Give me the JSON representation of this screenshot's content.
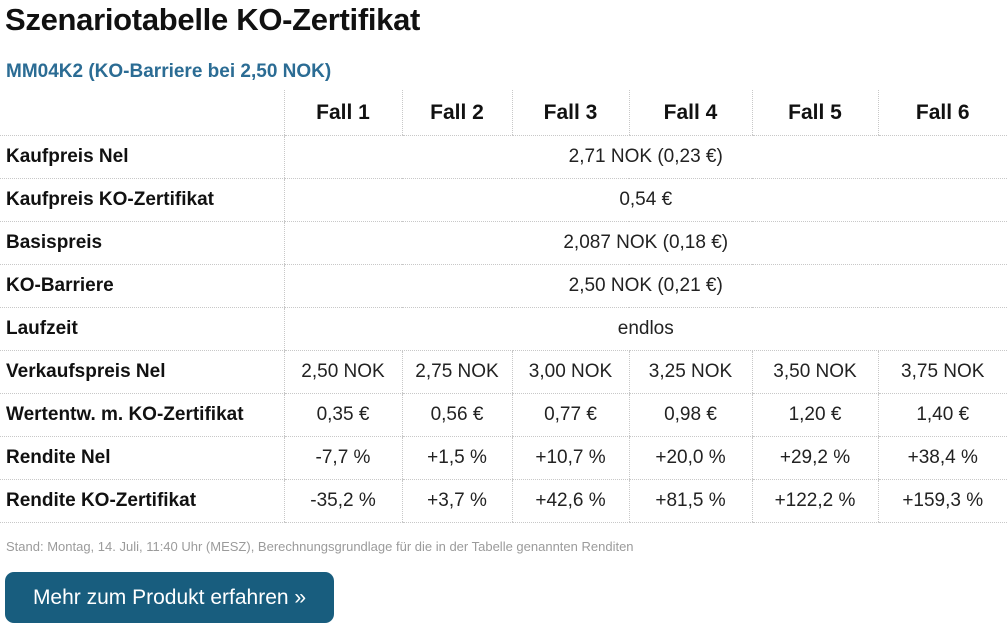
{
  "page": {
    "title": "Szenariotabelle KO-Zertifikat",
    "subtitle": "MM04K2 (KO-Barriere bei 2,50 NOK)"
  },
  "table": {
    "columns": [
      "Fall 1",
      "Fall 2",
      "Fall 3",
      "Fall 4",
      "Fall 5",
      "Fall 6"
    ],
    "rows": [
      {
        "label": "Kaufpreis Nel",
        "merged": "2,71 NOK (0,23 €)"
      },
      {
        "label": "Kaufpreis KO-Zertifikat",
        "merged": "0,54 €"
      },
      {
        "label": "Basispreis",
        "merged": "2,087 NOK (0,18 €)"
      },
      {
        "label": "KO-Barriere",
        "merged": "2,50 NOK (0,21 €)"
      },
      {
        "label": "Laufzeit",
        "merged": "endlos"
      },
      {
        "label": "Verkaufspreis Nel",
        "cells": [
          "2,50 NOK",
          "2,75 NOK",
          "3,00 NOK",
          "3,25 NOK",
          "3,50 NOK",
          "3,75 NOK"
        ]
      },
      {
        "label": "Wertentw. m. KO-Zertifikat",
        "cells": [
          "0,35 €",
          "0,56 €",
          "0,77 €",
          "0,98 €",
          "1,20 €",
          "1,40 €"
        ]
      },
      {
        "label": "Rendite Nel",
        "cells": [
          "-7,7 %",
          "+1,5 %",
          "+10,7 %",
          "+20,0 %",
          "+29,2 %",
          "+38,4 %"
        ]
      },
      {
        "label": "Rendite KO-Zertifikat",
        "cells": [
          "-35,2 %",
          "+3,7 %",
          "+42,6 %",
          "+81,5 %",
          "+122,2 %",
          "+159,3 %"
        ]
      }
    ]
  },
  "footnote": "Stand: Montag, 14. Juli, 11:40 Uhr (MESZ), Berechnungsgrundlage für die in der Tabelle genannten Renditen",
  "cta": {
    "label": "Mehr zum Produkt erfahren »"
  },
  "colors": {
    "accent": "#2b6c94",
    "button": "#185d7e",
    "footnote": "#9b9b9b"
  }
}
